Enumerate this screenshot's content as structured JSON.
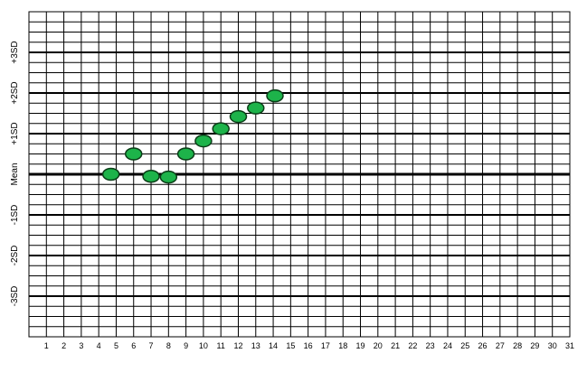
{
  "chart_data": {
    "type": "scatter",
    "title": "",
    "xlabel": "",
    "ylabel": "",
    "x_ticks": [
      "1",
      "2",
      "3",
      "4",
      "5",
      "6",
      "7",
      "8",
      "9",
      "10",
      "11",
      "12",
      "13",
      "14",
      "15",
      "16",
      "17",
      "18",
      "19",
      "20",
      "21",
      "22",
      "23",
      "24",
      "25",
      "26",
      "27",
      "28",
      "29",
      "30",
      "31"
    ],
    "y_ticks": [
      {
        "label": "+3SD",
        "value": 3
      },
      {
        "label": "+2SD",
        "value": 2
      },
      {
        "label": "+1SD",
        "value": 1
      },
      {
        "label": "Mean",
        "value": 0
      },
      {
        "label": "-1SD",
        "value": -1
      },
      {
        "label": "-2SD",
        "value": -2
      },
      {
        "label": "-3SD",
        "value": -3
      }
    ],
    "xlim": [
      0,
      31
    ],
    "ylim": [
      -4,
      4
    ],
    "grid": true,
    "points": [
      {
        "x": 4.7,
        "y": 0.0
      },
      {
        "x": 6.0,
        "y": 0.5
      },
      {
        "x": 7.0,
        "y": -0.05
      },
      {
        "x": 8.0,
        "y": -0.07
      },
      {
        "x": 9.0,
        "y": 0.5
      },
      {
        "x": 10.0,
        "y": 0.82
      },
      {
        "x": 11.0,
        "y": 1.12
      },
      {
        "x": 12.0,
        "y": 1.42
      },
      {
        "x": 13.0,
        "y": 1.63
      },
      {
        "x": 14.1,
        "y": 1.93
      }
    ],
    "marker_fill": "#1db34a",
    "marker_stroke": "#0a3d17"
  }
}
